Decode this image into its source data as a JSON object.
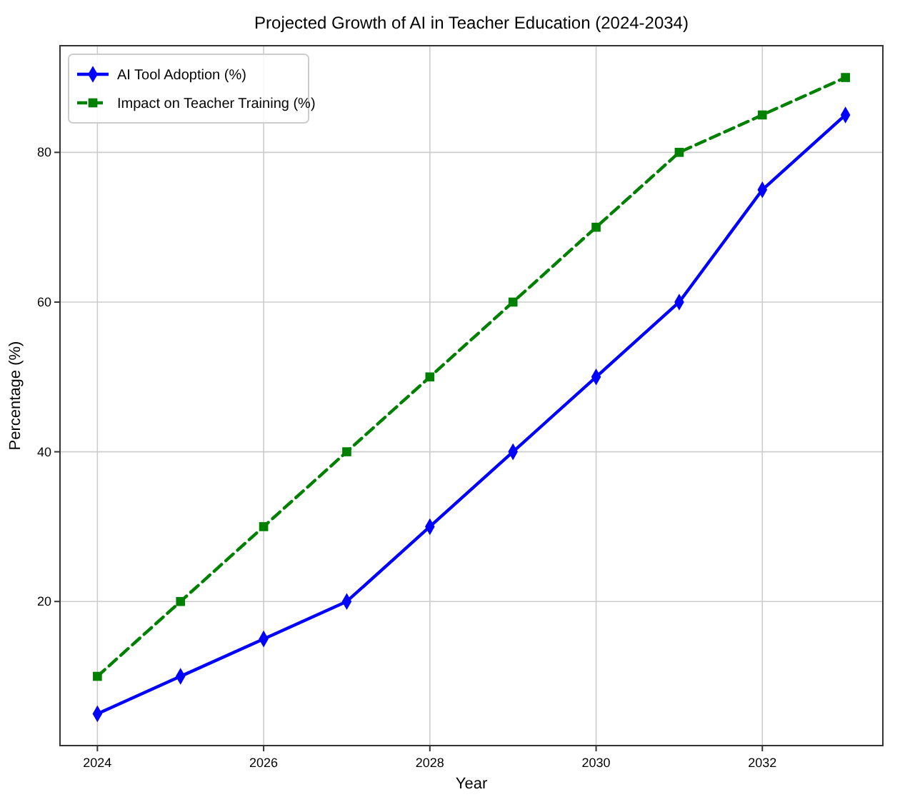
{
  "chart_data": {
    "type": "line",
    "title": "Projected Growth of AI in Teacher Education (2024-2034)",
    "xlabel": "Year",
    "ylabel": "Percentage (%)",
    "x": [
      2024,
      2025,
      2026,
      2027,
      2028,
      2029,
      2030,
      2031,
      2032,
      2033
    ],
    "series": [
      {
        "name": "AI Tool Adoption (%)",
        "color": "#0000ff",
        "values": [
          5,
          10,
          15,
          20,
          30,
          40,
          50,
          60,
          75,
          85
        ],
        "marker": "diamond",
        "line_style": "solid"
      },
      {
        "name": "Impact on Teacher Training (%)",
        "color": "#008000",
        "values": [
          10,
          20,
          30,
          40,
          50,
          60,
          70,
          80,
          85,
          90
        ],
        "marker": "square",
        "line_style": "dashed"
      }
    ],
    "xlim": [
      2023.55,
      2033.45
    ],
    "xticks": [
      2024,
      2026,
      2028,
      2030,
      2032
    ],
    "ylim": [
      0.75,
      94.25
    ],
    "yticks": [
      20,
      40,
      60,
      80
    ],
    "grid": true,
    "legend": "top left"
  }
}
